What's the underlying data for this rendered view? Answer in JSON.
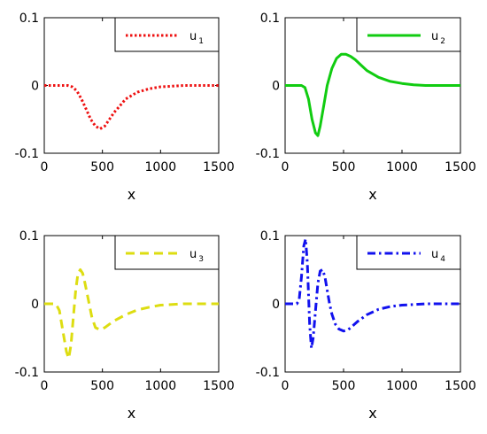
{
  "chart_data": [
    {
      "type": "line",
      "xlabel": "x",
      "ylabel": "",
      "xlim": [
        0,
        1500
      ],
      "ylim": [
        -0.1,
        0.1
      ],
      "xticks": [
        "0",
        "500",
        "1000",
        "1500"
      ],
      "yticks": [
        "0.1",
        "0",
        "-0.1"
      ],
      "legend_placement": "top-right",
      "series": [
        {
          "name": "u",
          "subscript": "1",
          "color": "#ee1111",
          "style": "dotted",
          "x": [
            0,
            200,
            240,
            280,
            320,
            360,
            400,
            440,
            480,
            520,
            560,
            600,
            650,
            700,
            800,
            900,
            1000,
            1100,
            1200,
            1300,
            1400,
            1500
          ],
          "y": [
            0,
            0,
            -0.002,
            -0.008,
            -0.02,
            -0.035,
            -0.05,
            -0.06,
            -0.064,
            -0.06,
            -0.05,
            -0.04,
            -0.03,
            -0.02,
            -0.01,
            -0.005,
            -0.002,
            -0.001,
            0,
            0,
            0,
            0
          ]
        }
      ]
    },
    {
      "type": "line",
      "xlabel": "x",
      "ylabel": "",
      "xlim": [
        0,
        1500
      ],
      "ylim": [
        -0.1,
        0.1
      ],
      "xticks": [
        "0",
        "500",
        "1000",
        "1500"
      ],
      "yticks": [
        "0.1",
        "0",
        "-0.1"
      ],
      "legend_placement": "top-right",
      "series": [
        {
          "name": "u",
          "subscript": "2",
          "color": "#11cc11",
          "style": "solid",
          "x": [
            0,
            140,
            170,
            200,
            230,
            260,
            280,
            300,
            330,
            360,
            400,
            440,
            480,
            520,
            560,
            600,
            650,
            700,
            800,
            900,
            1000,
            1100,
            1200,
            1300,
            1400,
            1500
          ],
          "y": [
            0,
            0,
            -0.003,
            -0.02,
            -0.05,
            -0.07,
            -0.074,
            -0.06,
            -0.03,
            0,
            0.025,
            0.04,
            0.046,
            0.046,
            0.043,
            0.038,
            0.03,
            0.022,
            0.012,
            0.006,
            0.003,
            0.001,
            0,
            0,
            0,
            0
          ]
        }
      ]
    },
    {
      "type": "line",
      "xlabel": "x",
      "ylabel": "",
      "xlim": [
        0,
        1500
      ],
      "ylim": [
        -0.1,
        0.1
      ],
      "xticks": [
        "0",
        "500",
        "1000",
        "1500"
      ],
      "yticks": [
        "0.1",
        "0",
        "-0.1"
      ],
      "legend_placement": "top-right",
      "series": [
        {
          "name": "u",
          "subscript": "3",
          "color": "#dddd11",
          "style": "dashed",
          "x": [
            0,
            100,
            130,
            160,
            190,
            210,
            230,
            250,
            270,
            290,
            310,
            330,
            350,
            380,
            410,
            440,
            480,
            520,
            560,
            600,
            700,
            800,
            900,
            1000,
            1100,
            1200,
            1300,
            1400,
            1500
          ],
          "y": [
            0,
            0,
            -0.01,
            -0.04,
            -0.07,
            -0.08,
            -0.06,
            -0.02,
            0.02,
            0.045,
            0.05,
            0.045,
            0.03,
            0.005,
            -0.02,
            -0.035,
            -0.038,
            -0.035,
            -0.03,
            -0.025,
            -0.016,
            -0.009,
            -0.005,
            -0.002,
            -0.001,
            0,
            0,
            0,
            0
          ]
        }
      ]
    },
    {
      "type": "line",
      "xlabel": "x",
      "ylabel": "",
      "xlim": [
        0,
        1500
      ],
      "ylim": [
        -0.1,
        0.1
      ],
      "xticks": [
        "0",
        "500",
        "1000",
        "1500"
      ],
      "yticks": [
        "0.1",
        "0",
        "-0.1"
      ],
      "legend_placement": "top-right",
      "series": [
        {
          "name": "u",
          "subscript": "4",
          "color": "#1111ee",
          "style": "dashdot",
          "x": [
            0,
            100,
            120,
            140,
            160,
            175,
            190,
            210,
            225,
            240,
            260,
            280,
            300,
            320,
            340,
            360,
            380,
            400,
            430,
            460,
            500,
            540,
            580,
            620,
            700,
            800,
            900,
            1000,
            1100,
            1200,
            1300,
            1400,
            1500
          ],
          "y": [
            0,
            0,
            0.005,
            0.04,
            0.085,
            0.095,
            0.06,
            -0.03,
            -0.065,
            -0.05,
            -0.01,
            0.03,
            0.048,
            0.05,
            0.04,
            0.02,
            0,
            -0.015,
            -0.03,
            -0.037,
            -0.04,
            -0.038,
            -0.032,
            -0.026,
            -0.016,
            -0.008,
            -0.004,
            -0.002,
            -0.001,
            0,
            0,
            0,
            0
          ]
        }
      ]
    }
  ]
}
